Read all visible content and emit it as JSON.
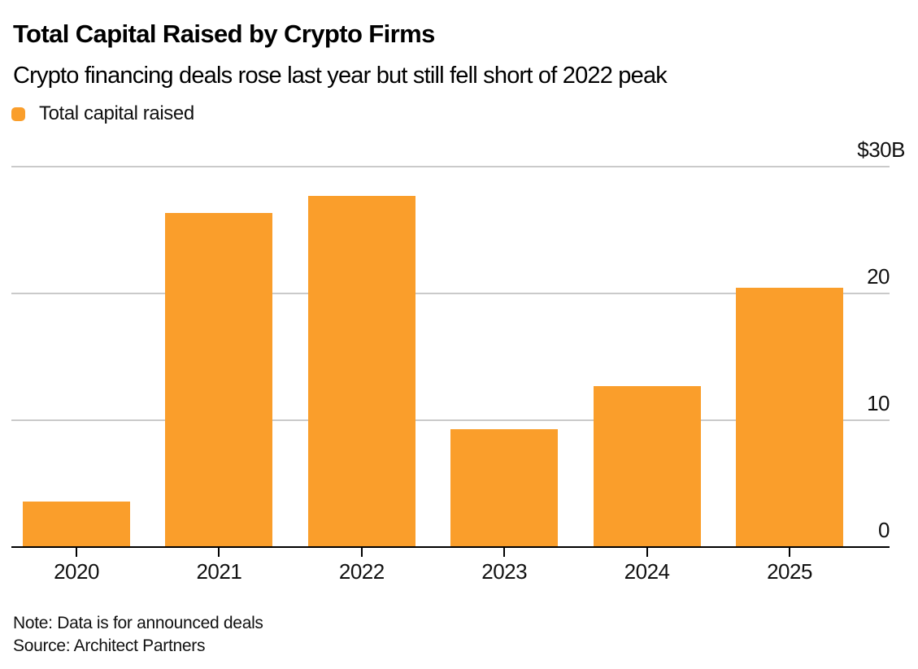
{
  "header": {
    "title": "Total Capital Raised by Crypto Firms",
    "subtitle": "Crypto financing deals rose last year but still fell short of 2022 peak"
  },
  "legend": {
    "label": "Total capital raised"
  },
  "chart_data": {
    "type": "bar",
    "title": "Total Capital Raised by Crypto Firms",
    "subtitle": "Crypto financing deals rose last year but still fell short of 2022 peak",
    "series_name": "Total capital raised",
    "categories": [
      "2020",
      "2021",
      "2022",
      "2023",
      "2024",
      "2025"
    ],
    "values": [
      3.5,
      26.3,
      27.6,
      9.2,
      12.6,
      20.4
    ],
    "ylim": [
      0,
      30
    ],
    "y_ticks": [
      {
        "value": 30,
        "label": "$30B"
      },
      {
        "value": 20,
        "label": "20"
      },
      {
        "value": 10,
        "label": "10"
      },
      {
        "value": 0,
        "label": "0"
      }
    ],
    "grid": true,
    "legend_position": "top-left"
  },
  "footer": {
    "note": "Note: Data is for announced deals",
    "source": "Source: Architect Partners"
  },
  "colors": {
    "bar": "#FA9E2B",
    "gridline": "#cacaca",
    "axis": "#000000",
    "text": "#000000",
    "background": "#ffffff"
  }
}
